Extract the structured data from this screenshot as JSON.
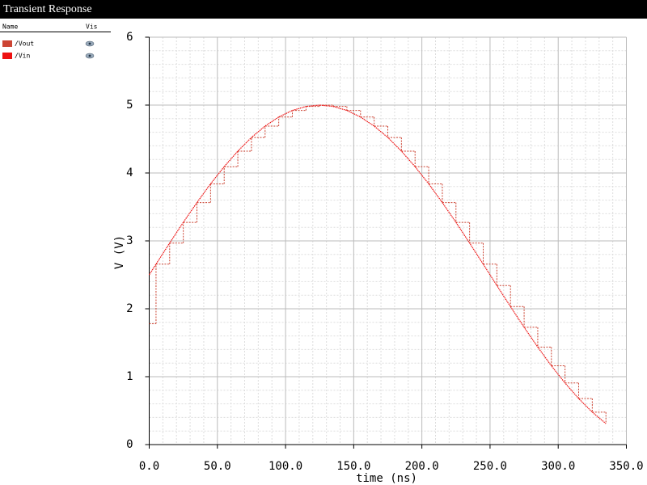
{
  "window_title": "Transient Response",
  "legend_header": {
    "name": "Name",
    "vis": "Vis"
  },
  "chart_data": {
    "type": "line",
    "xlabel": "time (ns)",
    "ylabel": "V (V)",
    "x": [
      0,
      5,
      15,
      25,
      35,
      45,
      55,
      65,
      75,
      85,
      95,
      105,
      115,
      125,
      135,
      145,
      155,
      165,
      175,
      185,
      195,
      205,
      215,
      225,
      235,
      245,
      255,
      265,
      275,
      285,
      295,
      305,
      315,
      325,
      335
    ],
    "series": [
      {
        "name": "/Vout",
        "color": "#cc4433",
        "style": "step",
        "values": [
          1.78,
          2.657,
          2.968,
          3.273,
          3.564,
          3.84,
          4.093,
          4.322,
          4.523,
          4.691,
          4.824,
          4.921,
          4.98,
          5.0,
          4.98,
          4.921,
          4.824,
          4.691,
          4.523,
          4.322,
          4.093,
          3.84,
          3.564,
          3.273,
          2.968,
          2.657,
          2.343,
          2.032,
          1.727,
          1.436,
          1.16,
          0.907,
          0.678,
          0.477,
          0.309
        ]
      },
      {
        "name": "/Vin",
        "color": "#ee1111",
        "style": "line",
        "values": [
          2.5,
          2.657,
          2.968,
          3.273,
          3.564,
          3.84,
          4.093,
          4.322,
          4.523,
          4.691,
          4.824,
          4.921,
          4.98,
          5.0,
          4.98,
          4.921,
          4.824,
          4.691,
          4.523,
          4.322,
          4.093,
          3.84,
          3.564,
          3.273,
          2.968,
          2.657,
          2.343,
          2.032,
          1.727,
          1.436,
          1.16,
          0.907,
          0.678,
          0.477,
          0.309
        ]
      }
    ],
    "xlim": [
      0,
      350
    ],
    "xticks": [
      {
        "value": 0,
        "label": "0.0"
      },
      {
        "value": 50,
        "label": "50.0"
      },
      {
        "value": 100,
        "label": "100.0"
      },
      {
        "value": 150,
        "label": "150.0"
      },
      {
        "value": 200,
        "label": "200.0"
      },
      {
        "value": 250,
        "label": "250.0"
      },
      {
        "value": 300,
        "label": "300.0"
      },
      {
        "value": 350,
        "label": "350.0"
      }
    ],
    "ylim": [
      0,
      6
    ],
    "yticks": [
      0,
      1,
      2,
      3,
      4,
      5,
      6
    ],
    "grid": true
  }
}
